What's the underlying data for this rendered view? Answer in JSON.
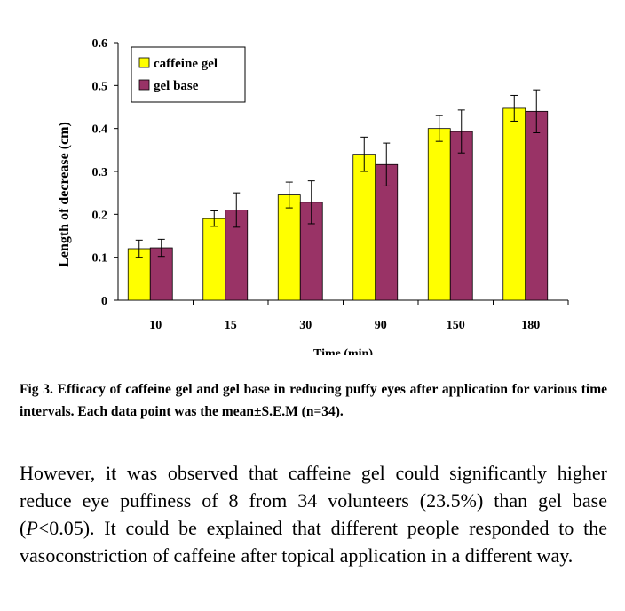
{
  "chart_data": {
    "type": "bar",
    "categories": [
      "10",
      "15",
      "30",
      "90",
      "150",
      "180"
    ],
    "series": [
      {
        "name": "caffeine gel",
        "values": [
          0.12,
          0.19,
          0.245,
          0.34,
          0.4,
          0.447
        ],
        "errors": [
          0.02,
          0.018,
          0.03,
          0.04,
          0.03,
          0.03
        ],
        "color": "#ffff00"
      },
      {
        "name": "gel base",
        "values": [
          0.122,
          0.21,
          0.228,
          0.316,
          0.393,
          0.44
        ],
        "errors": [
          0.02,
          0.04,
          0.05,
          0.05,
          0.05,
          0.05
        ],
        "color": "#993366"
      }
    ],
    "ylabel": "Length of decrease (cm)",
    "xlabel": "Time (min)",
    "ylim": [
      0,
      0.6
    ],
    "yticks": [
      "0",
      "0.1",
      "0.2",
      "0.3",
      "0.4",
      "0.5",
      "0.6"
    ],
    "grid": false,
    "legend": "top-left"
  },
  "caption": "Fig 3. Efficacy of caffeine gel and gel base in reducing puffy eyes after application for various time intervals. Each data point was the mean±S.E.M (n=34).",
  "body": {
    "part1": "However, it was observed that caffeine gel could significantly higher reduce eye puffiness of 8 from 34 volunteers (23.5%) than gel base (",
    "p_symbol": "P",
    "part2": "<0.05). It could be explained that different people responded to the vasoconstriction of caffeine after topical application in a different way."
  }
}
